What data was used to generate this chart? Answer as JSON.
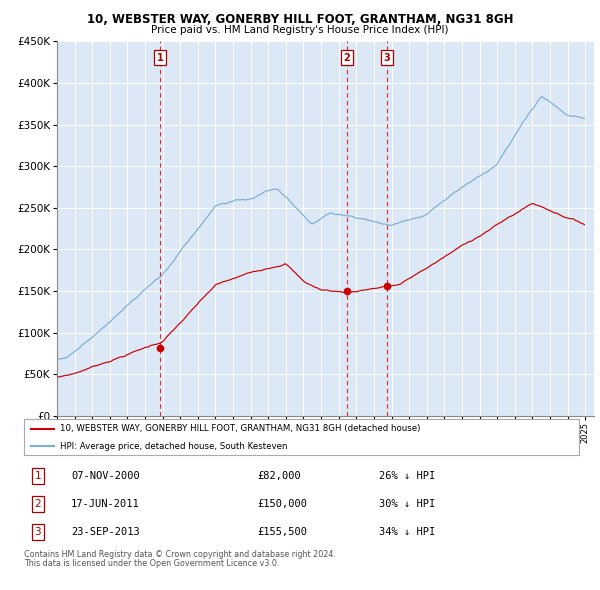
{
  "title": "10, WEBSTER WAY, GONERBY HILL FOOT, GRANTHAM, NG31 8GH",
  "subtitle": "Price paid vs. HM Land Registry's House Price Index (HPI)",
  "legend_line1": "10, WEBSTER WAY, GONERBY HILL FOOT, GRANTHAM, NG31 8GH (detached house)",
  "legend_line2": "HPI: Average price, detached house, South Kesteven",
  "table_entries": [
    {
      "num": "1",
      "date": "07-NOV-2000",
      "price": "£82,000",
      "pct": "26% ↓ HPI"
    },
    {
      "num": "2",
      "date": "17-JUN-2011",
      "price": "£150,000",
      "pct": "30% ↓ HPI"
    },
    {
      "num": "3",
      "date": "23-SEP-2013",
      "price": "£155,500",
      "pct": "34% ↓ HPI"
    }
  ],
  "footnote1": "Contains HM Land Registry data © Crown copyright and database right 2024.",
  "footnote2": "This data is licensed under the Open Government Licence v3.0.",
  "sale_dates_decimal": [
    2000.856,
    2011.458,
    2013.728
  ],
  "sale_prices": [
    82000,
    150000,
    155500
  ],
  "vline_labels": [
    "1",
    "2",
    "3"
  ],
  "ylim": [
    0,
    450000
  ],
  "xlim_start": 1995.0,
  "xlim_end": 2025.5,
  "bg_color": "#ffffff",
  "plot_bg_color": "#dce8f5",
  "grid_color": "#ffffff",
  "red_line_color": "#cc0000",
  "blue_line_color": "#7bafd4"
}
